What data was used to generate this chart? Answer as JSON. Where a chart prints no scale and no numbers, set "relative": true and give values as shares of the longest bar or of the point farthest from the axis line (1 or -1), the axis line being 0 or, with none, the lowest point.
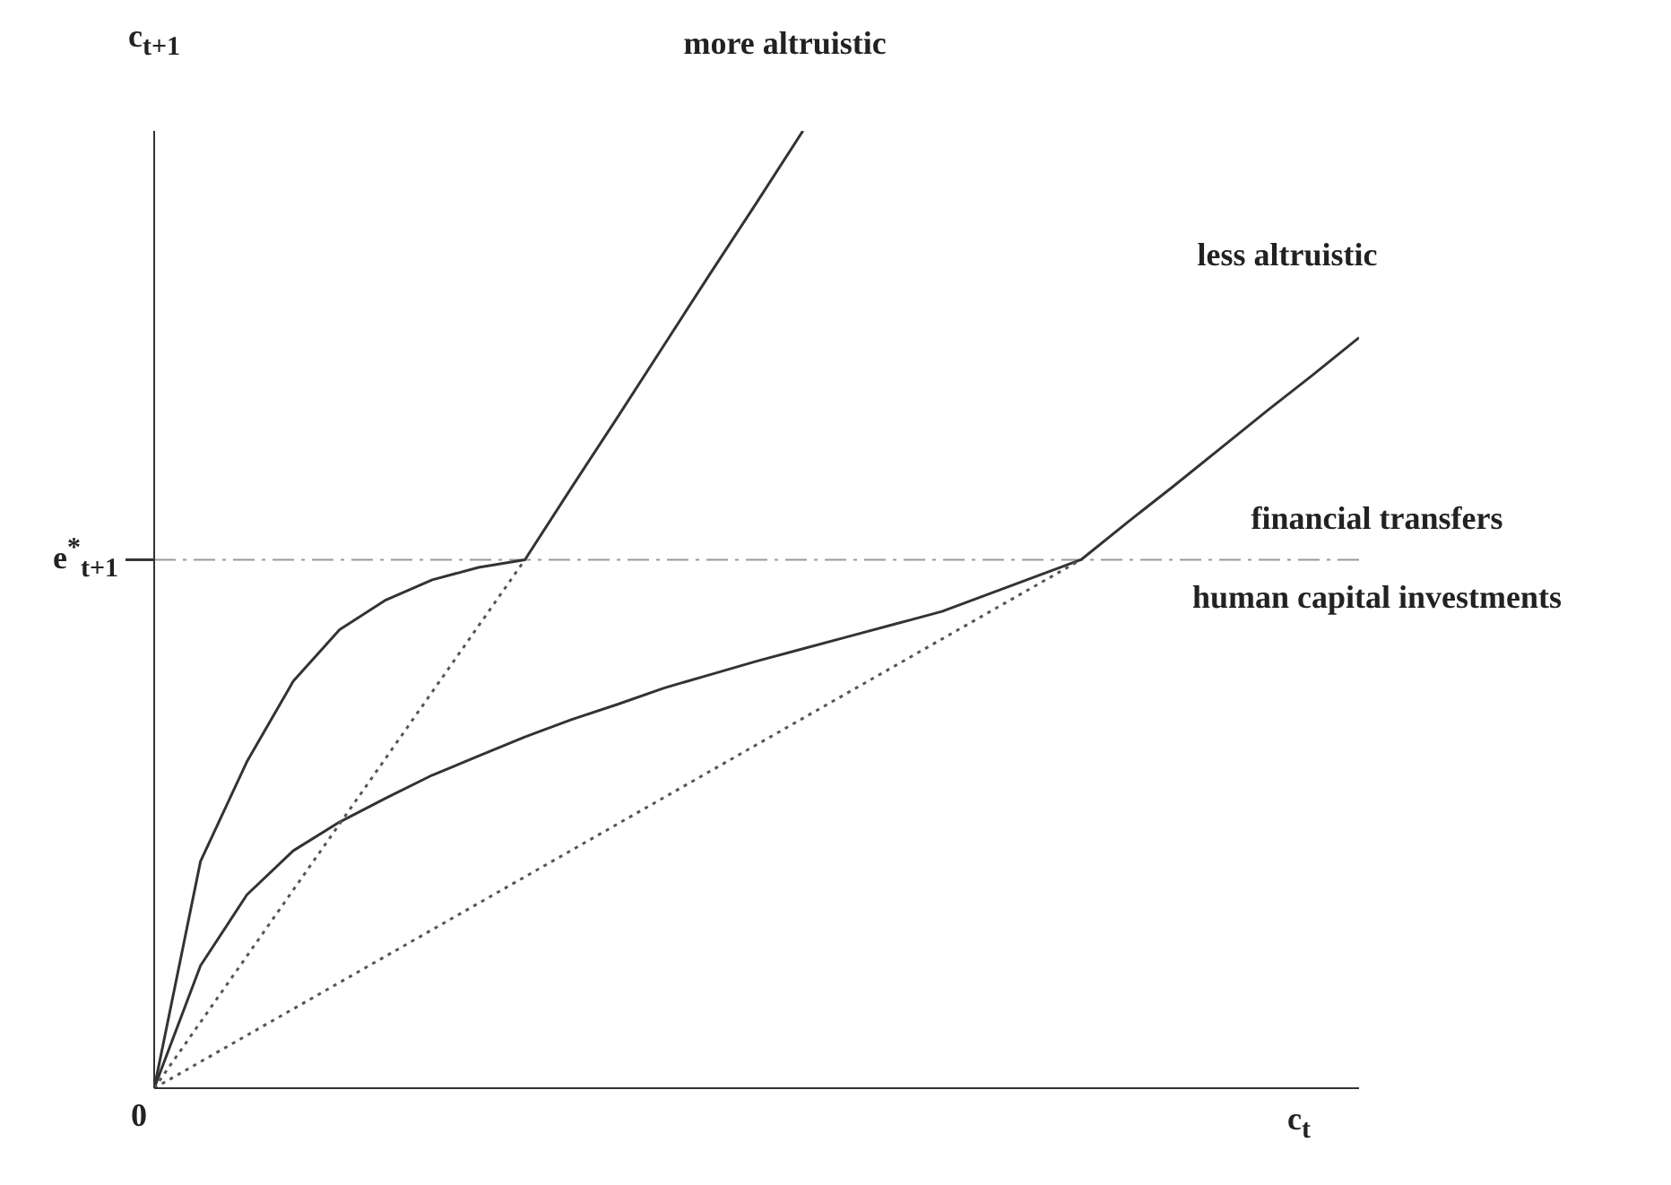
{
  "chart_data": {
    "type": "line",
    "relative": true,
    "xlabel": "c$_{t}$",
    "ylabel": "c$_{t+1}$",
    "marker": "none",
    "categories": [
      null,
      null,
      null,
      null,
      null,
      null,
      null,
      null,
      null,
      null,
      null,
      null,
      null,
      null,
      null,
      null,
      null,
      null,
      null,
      null,
      null,
      null,
      null,
      null,
      null,
      null,
      null
    ],
    "series": [
      {
        "color": "#333333",
        "line_style": "solid",
        "values": [
          0,
          0.237,
          0.341,
          0.425,
          0.479,
          0.51,
          0.531,
          0.544,
          0.552,
          0.627,
          0.701,
          0.776,
          0.851,
          0.925,
          1.0,
          null,
          null,
          null,
          null,
          null,
          null,
          null,
          null,
          null,
          null,
          null,
          null
        ]
      },
      {
        "color": "#333333",
        "line_style": "solid",
        "values": [
          0,
          0.128,
          0.202,
          0.248,
          0.278,
          0.303,
          0.327,
          0.347,
          0.367,
          0.385,
          0.401,
          0.418,
          0.432,
          0.446,
          0.459,
          0.472,
          0.485,
          0.498,
          0.516,
          0.534,
          0.552,
          0.591,
          0.629,
          0.668,
          0.707,
          0.745,
          0.784
        ]
      },
      {
        "color": "#555555",
        "line_style": "dotted",
        "values": [
          0,
          0.069,
          0.138,
          0.207,
          0.276,
          0.345,
          0.414,
          0.483,
          0.552,
          null,
          null,
          null,
          null,
          null,
          null,
          null,
          null,
          null,
          null,
          null,
          null,
          null,
          null,
          null,
          null,
          null,
          null
        ]
      },
      {
        "color": "#555555",
        "line_style": "dotted",
        "values": [
          0,
          0.0276,
          0.0552,
          0.0828,
          0.1104,
          0.138,
          0.1656,
          0.1932,
          0.2208,
          0.2484,
          0.276,
          0.3036,
          0.3312,
          0.3588,
          0.3864,
          0.414,
          0.4416,
          0.4692,
          0.4968,
          0.5244,
          0.552,
          null,
          null,
          null,
          null,
          null,
          null
        ]
      }
    ],
    "ref_lines": [
      {
        "axis": "y",
        "value": 0.552,
        "label": "e$^{*}$$_{t+1}$",
        "color": "#999999",
        "line_style": "dashdot"
      }
    ],
    "annotations": [
      "more altruistic",
      "less altruistic",
      "financial transfers",
      "human capital investments",
      "0"
    ]
  }
}
